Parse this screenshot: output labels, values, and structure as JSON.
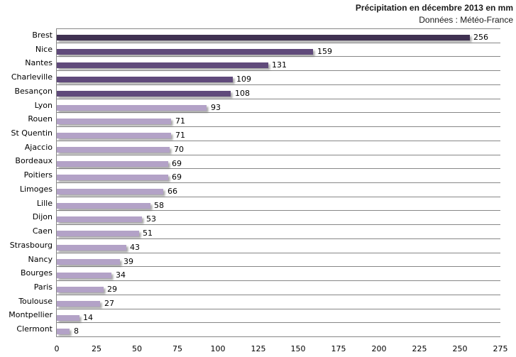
{
  "chart_data": {
    "type": "bar",
    "orientation": "horizontal",
    "title": "Précipitation en décembre 2013 en mm",
    "subtitle": "Données : Météo-France",
    "categories": [
      "Brest",
      "Nice",
      "Nantes",
      "Charleville",
      "Besançon",
      "Lyon",
      "Rouen",
      "St Quentin",
      "Ajaccio",
      "Bordeaux",
      "Poitiers",
      "Limoges",
      "Lille",
      "Dijon",
      "Caen",
      "Strasbourg",
      "Nancy",
      "Bourges",
      "Paris",
      "Toulouse",
      "Montpellier",
      "Clermont"
    ],
    "values": [
      256,
      159,
      131,
      109,
      108,
      93,
      71,
      71,
      70,
      69,
      69,
      66,
      58,
      53,
      51,
      43,
      39,
      34,
      29,
      27,
      14,
      8
    ],
    "bar_colors": [
      "#403152",
      "#604A7B",
      "#604A7B",
      "#604A7B",
      "#604A7B",
      "#B3A2C7",
      "#B3A2C7",
      "#B3A2C7",
      "#B3A2C7",
      "#B3A2C7",
      "#B3A2C7",
      "#B3A2C7",
      "#B3A2C7",
      "#B3A2C7",
      "#B3A2C7",
      "#B3A2C7",
      "#B3A2C7",
      "#B3A2C7",
      "#B3A2C7",
      "#B3A2C7",
      "#B3A2C7",
      "#B3A2C7"
    ],
    "value_labels": [
      "256",
      "159",
      "131",
      "109",
      "108",
      "93",
      "71",
      "71",
      "70",
      "69",
      "69",
      "66",
      "58",
      "53",
      "51",
      "43",
      "39",
      "34",
      "29",
      "27",
      "14",
      "8"
    ],
    "xlim": [
      0,
      275
    ],
    "xticks": [
      0,
      25,
      50,
      75,
      100,
      125,
      150,
      175,
      200,
      225,
      250,
      275
    ],
    "grid": "horizontal-category-separators",
    "legend": "none",
    "colors": {
      "bar_dark": "#403152",
      "bar_medium": "#604A7B",
      "bar_light": "#B3A2C7",
      "gridline": "#878787",
      "text": "#000000"
    }
  }
}
